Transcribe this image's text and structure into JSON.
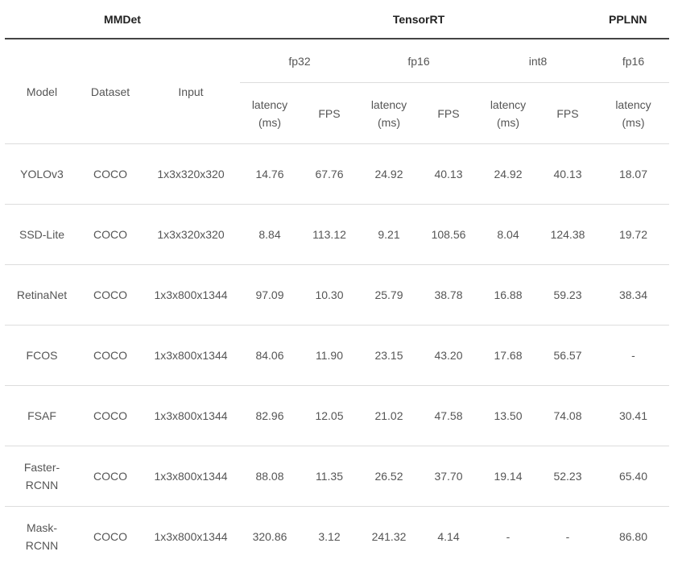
{
  "groups": {
    "mmdet": "MMDet",
    "tensorrt": "TensorRT",
    "pplnn": "PPLNN"
  },
  "row_headers": {
    "model": "Model",
    "dataset": "Dataset",
    "input": "Input"
  },
  "precisions": {
    "trt_fp32": "fp32",
    "trt_fp16": "fp16",
    "trt_int8": "int8",
    "pplnn_fp16": "fp16"
  },
  "metrics": {
    "latency_line1": "latency",
    "latency_line2": "(ms)",
    "fps": "FPS"
  },
  "rows": [
    {
      "model": [
        "YOLOv3"
      ],
      "dataset": "COCO",
      "input": "1x3x320x320",
      "fp32_latency": "14.76",
      "fp32_fps": "67.76",
      "fp16_latency": "24.92",
      "fp16_fps": "40.13",
      "int8_latency": "24.92",
      "int8_fps": "40.13",
      "pplnn_fp16_latency": "18.07"
    },
    {
      "model": [
        "SSD-Lite"
      ],
      "dataset": "COCO",
      "input": "1x3x320x320",
      "fp32_latency": "8.84",
      "fp32_fps": "113.12",
      "fp16_latency": "9.21",
      "fp16_fps": "108.56",
      "int8_latency": "8.04",
      "int8_fps": "124.38",
      "pplnn_fp16_latency": "19.72"
    },
    {
      "model": [
        "RetinaNet"
      ],
      "dataset": "COCO",
      "input": "1x3x800x1344",
      "fp32_latency": "97.09",
      "fp32_fps": "10.30",
      "fp16_latency": "25.79",
      "fp16_fps": "38.78",
      "int8_latency": "16.88",
      "int8_fps": "59.23",
      "pplnn_fp16_latency": "38.34"
    },
    {
      "model": [
        "FCOS"
      ],
      "dataset": "COCO",
      "input": "1x3x800x1344",
      "fp32_latency": "84.06",
      "fp32_fps": "11.90",
      "fp16_latency": "23.15",
      "fp16_fps": "43.20",
      "int8_latency": "17.68",
      "int8_fps": "56.57",
      "pplnn_fp16_latency": "-"
    },
    {
      "model": [
        "FSAF"
      ],
      "dataset": "COCO",
      "input": "1x3x800x1344",
      "fp32_latency": "82.96",
      "fp32_fps": "12.05",
      "fp16_latency": "21.02",
      "fp16_fps": "47.58",
      "int8_latency": "13.50",
      "int8_fps": "74.08",
      "pplnn_fp16_latency": "30.41"
    },
    {
      "model": [
        "Faster-",
        "RCNN"
      ],
      "dataset": "COCO",
      "input": "1x3x800x1344",
      "fp32_latency": "88.08",
      "fp32_fps": "11.35",
      "fp16_latency": "26.52",
      "fp16_fps": "37.70",
      "int8_latency": "19.14",
      "int8_fps": "52.23",
      "pplnn_fp16_latency": "65.40"
    },
    {
      "model": [
        "Mask-",
        "RCNN"
      ],
      "dataset": "COCO",
      "input": "1x3x800x1344",
      "fp32_latency": "320.86",
      "fp32_fps": "3.12",
      "fp16_latency": "241.32",
      "fp16_fps": "4.14",
      "int8_latency": "-",
      "int8_fps": "-",
      "pplnn_fp16_latency": "86.80"
    }
  ]
}
